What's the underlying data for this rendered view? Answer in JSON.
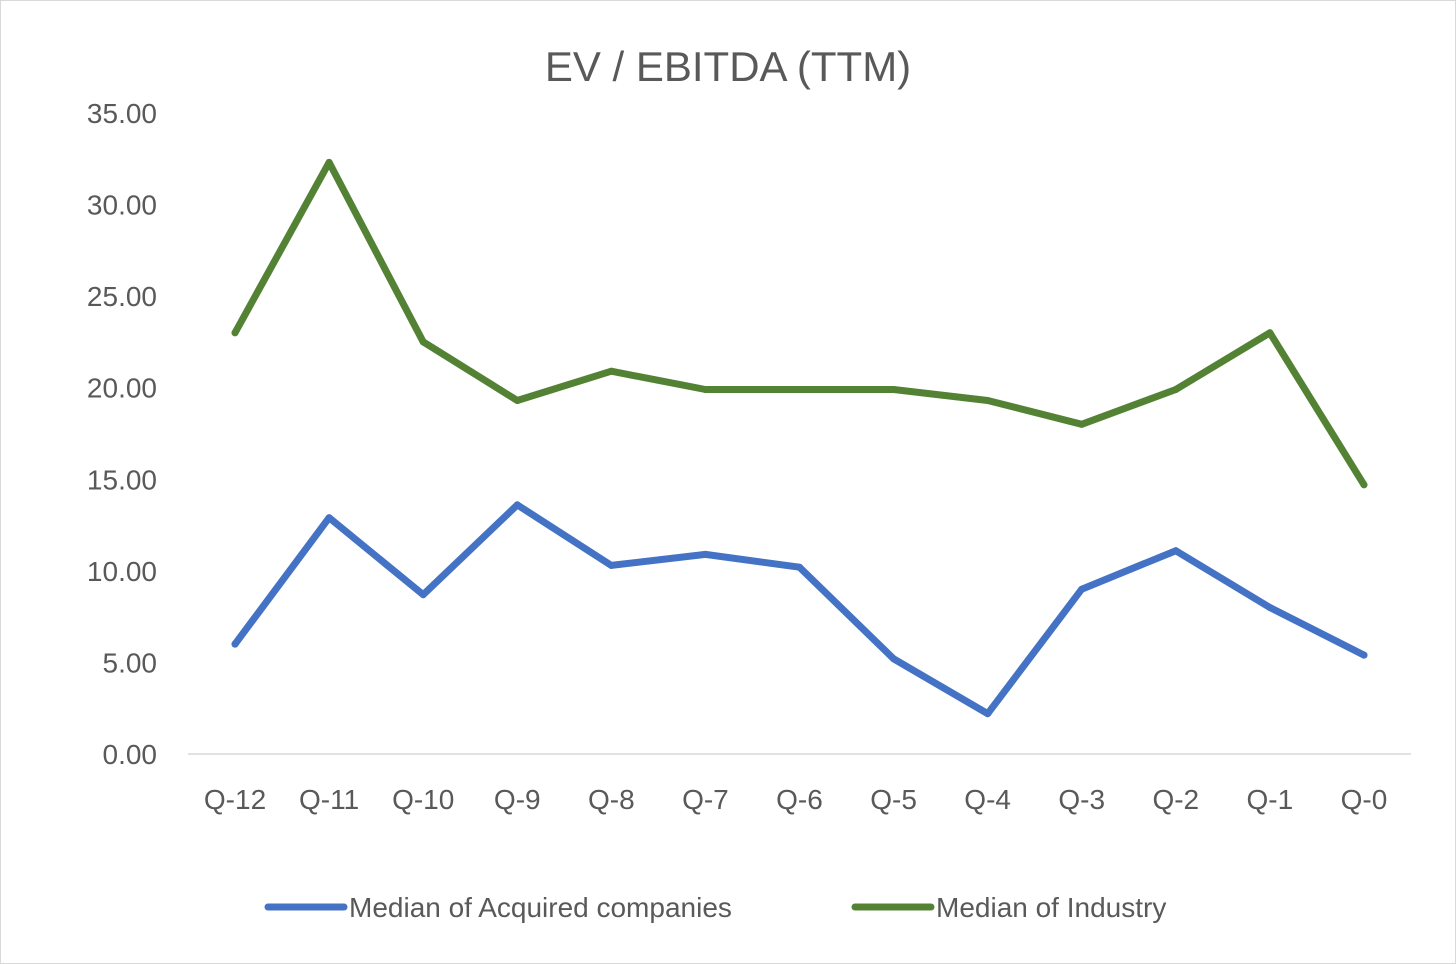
{
  "chart_data": {
    "type": "line",
    "title": "EV / EBITDA (TTM)",
    "xlabel": "",
    "ylabel": "",
    "categories": [
      "Q-12",
      "Q-11",
      "Q-10",
      "Q-9",
      "Q-8",
      "Q-7",
      "Q-6",
      "Q-5",
      "Q-4",
      "Q-3",
      "Q-2",
      "Q-1",
      "Q-0"
    ],
    "ylim": [
      0,
      35
    ],
    "y_ticks": [
      "0.00",
      "5.00",
      "10.00",
      "15.00",
      "20.00",
      "25.00",
      "30.00",
      "35.00"
    ],
    "grid": false,
    "legend_position": "bottom",
    "series": [
      {
        "name": "Median of Acquired companies",
        "color": "#4472c4",
        "values": [
          6.0,
          12.9,
          8.7,
          13.6,
          10.3,
          10.9,
          10.2,
          5.2,
          2.2,
          9.0,
          11.1,
          8.0,
          5.4
        ]
      },
      {
        "name": "Median of Industry",
        "color": "#548235",
        "values": [
          23.0,
          32.3,
          22.5,
          19.3,
          20.9,
          19.9,
          19.9,
          19.9,
          19.3,
          18.0,
          19.9,
          23.0,
          14.7
        ]
      }
    ]
  }
}
